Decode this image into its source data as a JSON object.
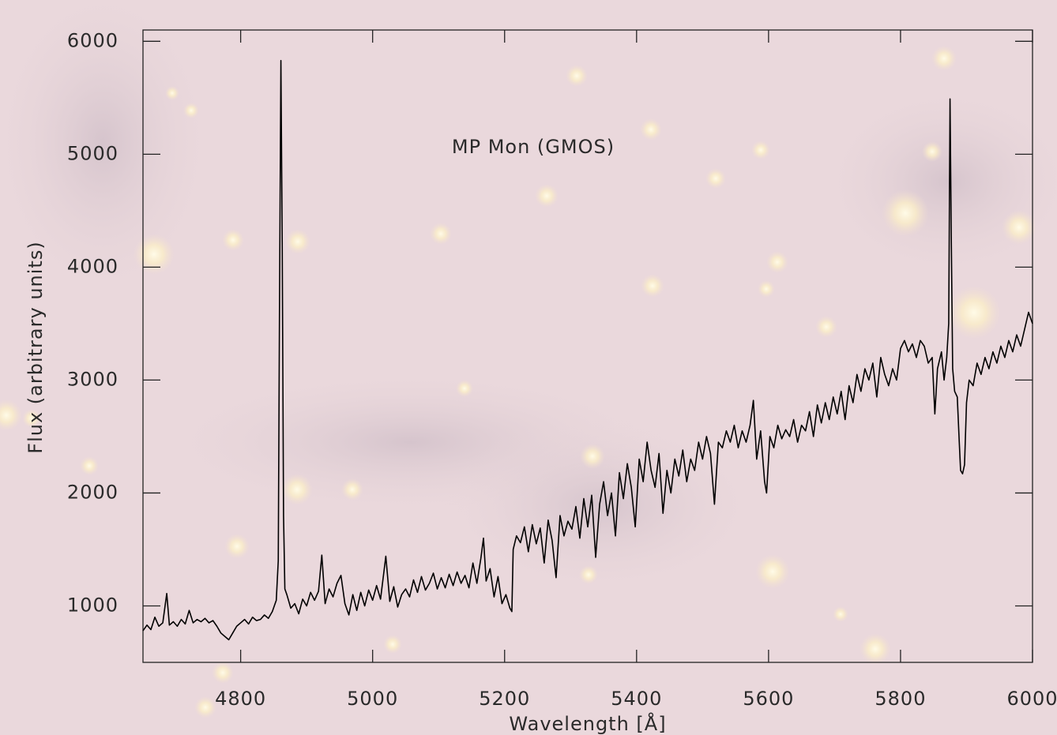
{
  "chart_data": {
    "type": "line",
    "annotation": "MP Mon  (GMOS)",
    "xlabel": "Wavelength [Å]",
    "ylabel": "Flux (arbitrary units)",
    "color": "#000000",
    "xlim": [
      4652,
      6000
    ],
    "ylim": [
      500,
      6100
    ],
    "xticks": [
      4800,
      5000,
      5200,
      5400,
      5600,
      5800,
      6000
    ],
    "yticks": [
      1000,
      2000,
      3000,
      4000,
      5000,
      6000
    ],
    "x": [
      4652,
      4658,
      4664,
      4670,
      4676,
      4682,
      4688,
      4692,
      4698,
      4704,
      4710,
      4716,
      4722,
      4728,
      4734,
      4740,
      4746,
      4752,
      4758,
      4764,
      4770,
      4776,
      4782,
      4788,
      4794,
      4800,
      4806,
      4812,
      4818,
      4824,
      4830,
      4836,
      4842,
      4848,
      4854,
      4857,
      4859,
      4861,
      4863,
      4865,
      4867,
      4870,
      4876,
      4882,
      4888,
      4894,
      4900,
      4906,
      4912,
      4918,
      4923,
      4928,
      4934,
      4940,
      4946,
      4952,
      4958,
      4964,
      4970,
      4976,
      4982,
      4988,
      4994,
      5000,
      5006,
      5012,
      5020,
      5026,
      5032,
      5038,
      5044,
      5050,
      5056,
      5062,
      5068,
      5074,
      5080,
      5086,
      5092,
      5098,
      5104,
      5110,
      5116,
      5122,
      5128,
      5134,
      5140,
      5146,
      5152,
      5158,
      5164,
      5168,
      5172,
      5178,
      5184,
      5190,
      5196,
      5202,
      5208,
      5211,
      5213,
      5218,
      5224,
      5230,
      5236,
      5242,
      5248,
      5254,
      5260,
      5266,
      5272,
      5278,
      5284,
      5290,
      5296,
      5302,
      5308,
      5314,
      5320,
      5326,
      5332,
      5338,
      5344,
      5350,
      5356,
      5362,
      5368,
      5374,
      5380,
      5386,
      5392,
      5398,
      5404,
      5410,
      5416,
      5422,
      5428,
      5434,
      5440,
      5446,
      5452,
      5458,
      5464,
      5470,
      5476,
      5482,
      5488,
      5494,
      5500,
      5506,
      5512,
      5518,
      5524,
      5530,
      5536,
      5542,
      5548,
      5554,
      5560,
      5566,
      5572,
      5577,
      5582,
      5588,
      5594,
      5597,
      5602,
      5608,
      5614,
      5620,
      5626,
      5632,
      5638,
      5644,
      5650,
      5656,
      5662,
      5668,
      5674,
      5680,
      5686,
      5692,
      5698,
      5704,
      5710,
      5716,
      5722,
      5728,
      5734,
      5740,
      5746,
      5752,
      5758,
      5764,
      5770,
      5776,
      5782,
      5788,
      5794,
      5800,
      5806,
      5812,
      5818,
      5824,
      5830,
      5836,
      5842,
      5848,
      5852,
      5856,
      5862,
      5866,
      5870,
      5873,
      5875,
      5877,
      5879,
      5882,
      5886,
      5889,
      5891,
      5894,
      5897,
      5900,
      5904,
      5910,
      5916,
      5922,
      5928,
      5934,
      5940,
      5946,
      5952,
      5958,
      5964,
      5970,
      5976,
      5982,
      5988,
      5994,
      6000
    ],
    "values": [
      780,
      830,
      790,
      900,
      820,
      850,
      1110,
      830,
      860,
      820,
      880,
      840,
      960,
      850,
      880,
      860,
      890,
      850,
      870,
      820,
      760,
      730,
      700,
      760,
      820,
      850,
      880,
      840,
      900,
      870,
      880,
      920,
      890,
      950,
      1050,
      1400,
      3800,
      5830,
      4200,
      1800,
      1150,
      1100,
      980,
      1020,
      930,
      1060,
      1000,
      1120,
      1050,
      1130,
      1450,
      1020,
      1150,
      1080,
      1200,
      1270,
      1020,
      920,
      1100,
      960,
      1120,
      1000,
      1140,
      1050,
      1180,
      1060,
      1440,
      1040,
      1170,
      990,
      1100,
      1150,
      1080,
      1230,
      1120,
      1260,
      1140,
      1200,
      1290,
      1150,
      1250,
      1160,
      1280,
      1180,
      1300,
      1200,
      1270,
      1160,
      1380,
      1200,
      1420,
      1600,
      1220,
      1330,
      1080,
      1260,
      1020,
      1100,
      980,
      950,
      1500,
      1620,
      1560,
      1700,
      1480,
      1720,
      1550,
      1690,
      1380,
      1760,
      1580,
      1250,
      1800,
      1620,
      1750,
      1680,
      1880,
      1600,
      1950,
      1700,
      1980,
      1430,
      1900,
      2100,
      1800,
      2000,
      1620,
      2180,
      1950,
      2260,
      2050,
      1700,
      2300,
      2100,
      2450,
      2200,
      2050,
      2350,
      1820,
      2200,
      2000,
      2300,
      2150,
      2380,
      2100,
      2300,
      2200,
      2450,
      2300,
      2500,
      2350,
      1900,
      2450,
      2400,
      2550,
      2450,
      2600,
      2400,
      2550,
      2450,
      2600,
      2820,
      2300,
      2550,
      2100,
      2000,
      2500,
      2400,
      2600,
      2480,
      2560,
      2500,
      2650,
      2450,
      2600,
      2550,
      2720,
      2500,
      2780,
      2620,
      2800,
      2650,
      2850,
      2700,
      2900,
      2650,
      2950,
      2800,
      3050,
      2900,
      3100,
      3000,
      3150,
      2850,
      3200,
      3050,
      2950,
      3100,
      3000,
      3280,
      3350,
      3250,
      3320,
      3200,
      3350,
      3300,
      3150,
      3200,
      2700,
      3100,
      3250,
      3000,
      3200,
      3500,
      5490,
      4200,
      3100,
      2900,
      2850,
      2450,
      2200,
      2170,
      2250,
      2800,
      3000,
      2950,
      3150,
      3050,
      3200,
      3100,
      3250,
      3150,
      3300,
      3200,
      3350,
      3250,
      3400,
      3300,
      3450,
      3600,
      3500
    ]
  }
}
